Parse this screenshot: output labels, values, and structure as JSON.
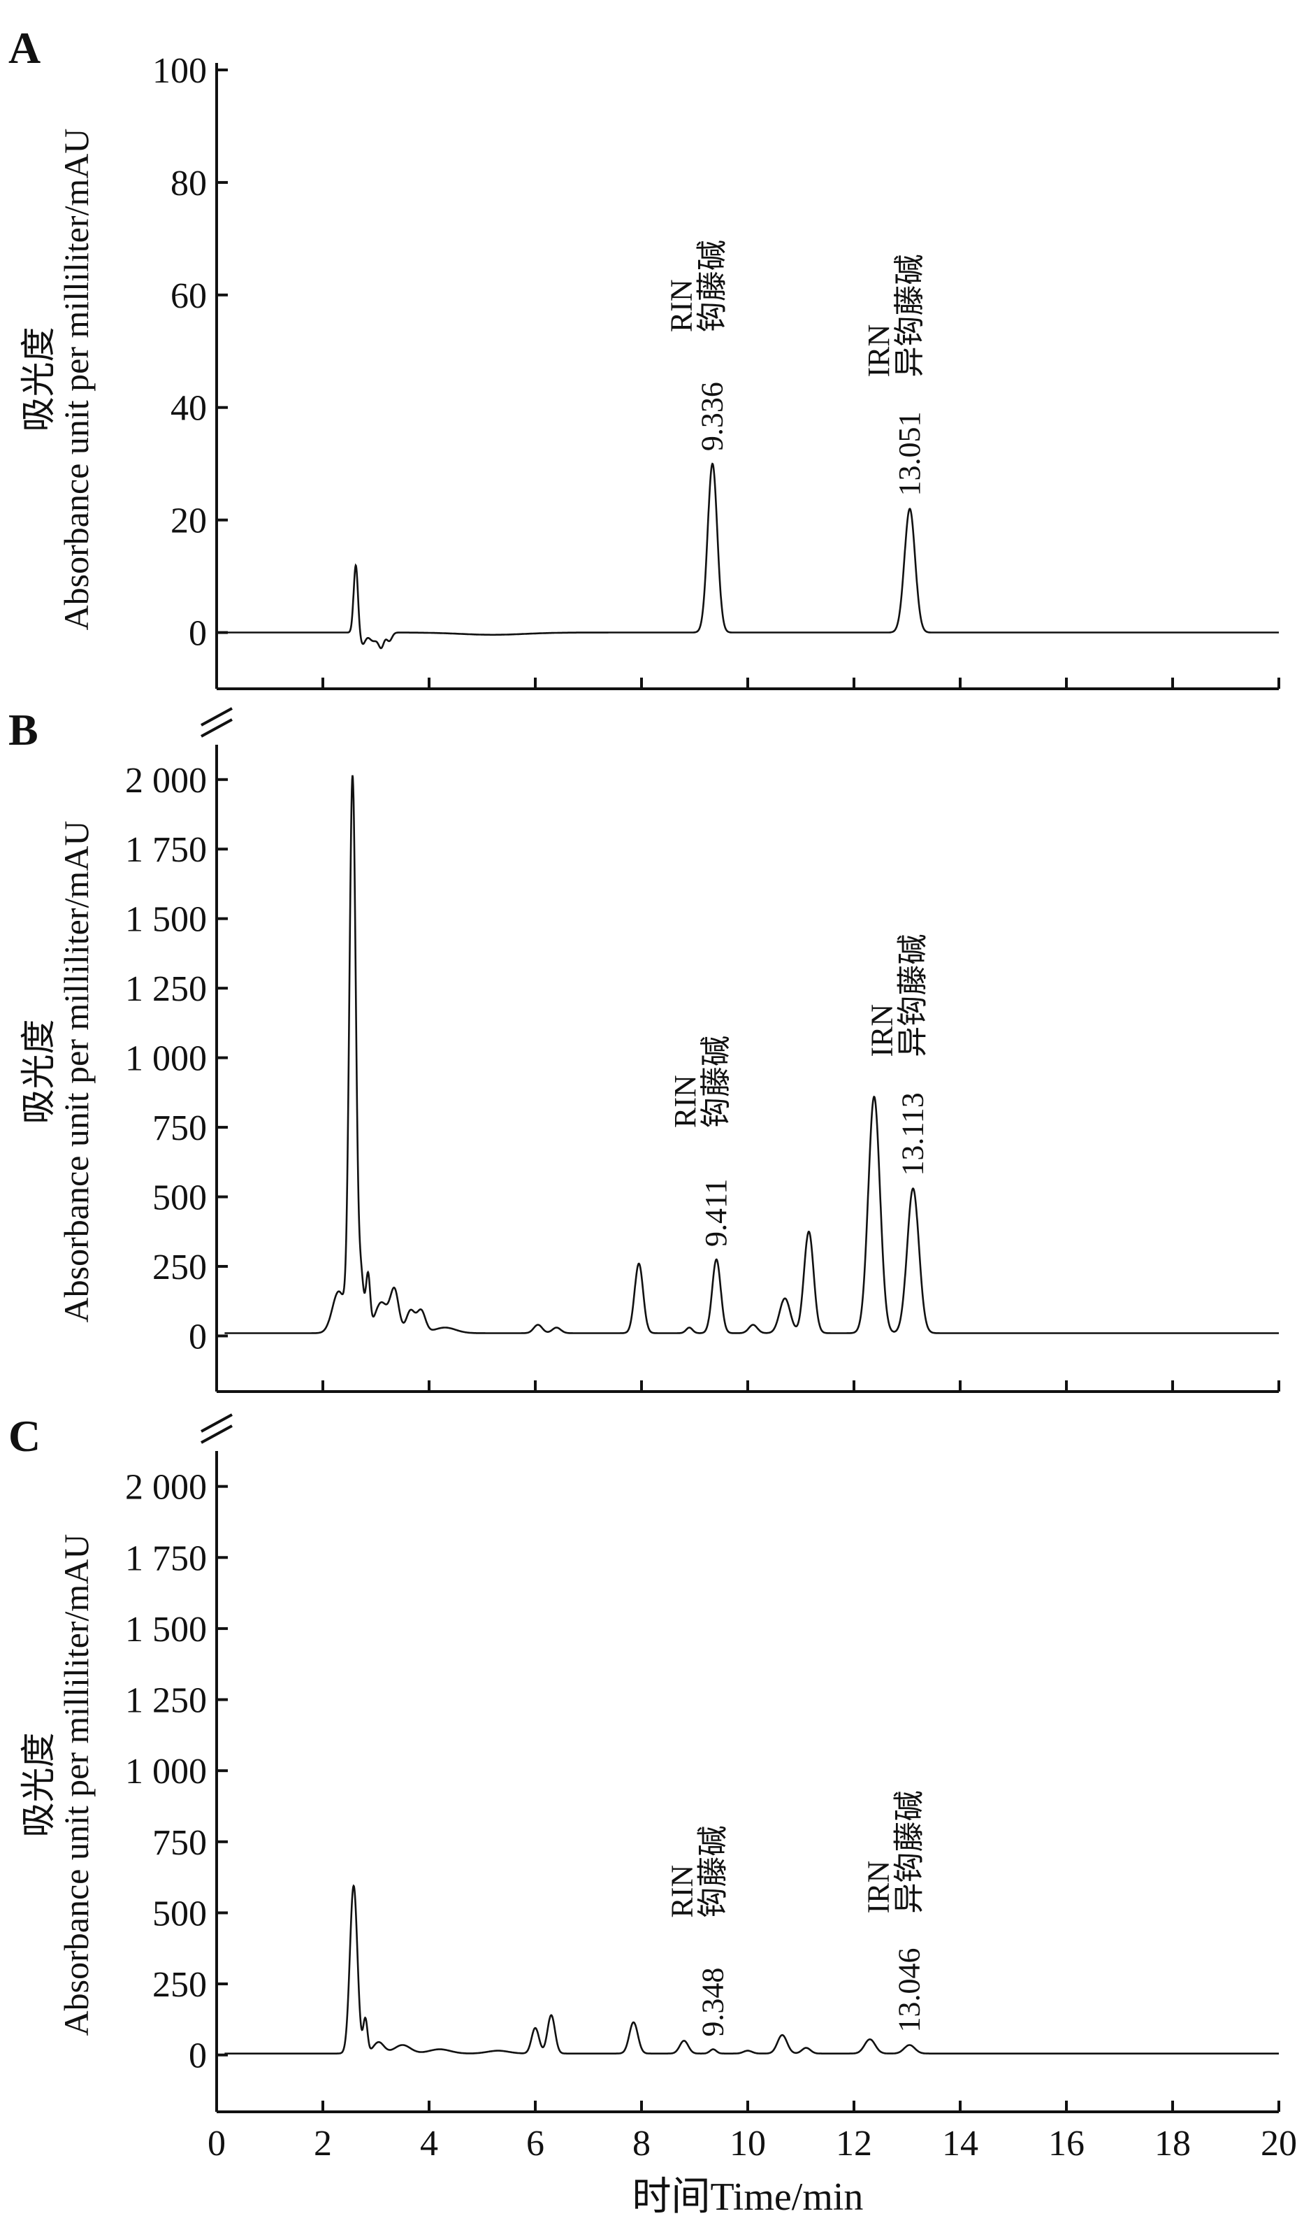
{
  "chart_data": [
    {
      "type": "line",
      "panel_label": "A",
      "ylabel_lines": [
        "吸光度",
        "Absorbance unit per milliliter/mAU"
      ],
      "ylim": [
        -10,
        100
      ],
      "yticks": [
        0,
        20,
        40,
        60,
        80,
        100
      ],
      "ytick_labels": [
        "0",
        "20",
        "40",
        "60",
        "80",
        "100"
      ],
      "xlim": [
        0,
        20
      ],
      "axis_break": false,
      "grid": false,
      "baseline": 0,
      "peaks": [
        {
          "x": 2.62,
          "y": 12,
          "w": 0.04
        },
        {
          "x": 2.75,
          "y": -2,
          "w": 0.05
        },
        {
          "x": 2.95,
          "y": -1.5,
          "w": 0.08
        },
        {
          "x": 3.1,
          "y": -2.5,
          "w": 0.05
        },
        {
          "x": 3.25,
          "y": -1.5,
          "w": 0.05
        },
        {
          "x": 5.2,
          "y": -0.4,
          "w": 0.6
        },
        {
          "x": 9.336,
          "y": 30,
          "w": 0.09
        },
        {
          "x": 13.051,
          "y": 22,
          "w": 0.1
        }
      ],
      "annotations": [
        {
          "x": 9.336,
          "line1": "RIN",
          "line1b": "钩藤碱",
          "line2": "9.336"
        },
        {
          "x": 13.051,
          "line1": "IRN",
          "line1b": "异钩藤碱",
          "line2": "13.051"
        }
      ]
    },
    {
      "type": "line",
      "panel_label": "B",
      "ylabel_lines": [
        "吸光度",
        "Absorbance unit per milliliter/mAU"
      ],
      "ylim": [
        -200,
        2100
      ],
      "yticks": [
        0,
        250,
        500,
        750,
        1000,
        1250,
        1500,
        1750,
        2000
      ],
      "ytick_labels": [
        "0",
        "250",
        "500",
        "750",
        "1 000",
        "1 250",
        "1 500",
        "1 750",
        "2 000"
      ],
      "xlim": [
        0,
        20
      ],
      "axis_break": true,
      "grid": false,
      "baseline": 10,
      "peaks": [
        {
          "x": 2.3,
          "y": 150,
          "w": 0.12
        },
        {
          "x": 2.56,
          "y": 1990,
          "w": 0.06
        },
        {
          "x": 2.72,
          "y": 200,
          "w": 0.05
        },
        {
          "x": 2.85,
          "y": 200,
          "w": 0.04
        },
        {
          "x": 3.1,
          "y": 110,
          "w": 0.12
        },
        {
          "x": 3.35,
          "y": 150,
          "w": 0.08
        },
        {
          "x": 3.65,
          "y": 80,
          "w": 0.08
        },
        {
          "x": 3.85,
          "y": 80,
          "w": 0.08
        },
        {
          "x": 4.3,
          "y": 20,
          "w": 0.2
        },
        {
          "x": 6.05,
          "y": 30,
          "w": 0.08
        },
        {
          "x": 6.4,
          "y": 20,
          "w": 0.08
        },
        {
          "x": 7.95,
          "y": 250,
          "w": 0.08
        },
        {
          "x": 8.9,
          "y": 20,
          "w": 0.06
        },
        {
          "x": 9.411,
          "y": 265,
          "w": 0.08
        },
        {
          "x": 10.1,
          "y": 30,
          "w": 0.08
        },
        {
          "x": 10.7,
          "y": 125,
          "w": 0.1
        },
        {
          "x": 11.15,
          "y": 365,
          "w": 0.09
        },
        {
          "x": 12.38,
          "y": 850,
          "w": 0.11
        },
        {
          "x": 13.113,
          "y": 520,
          "w": 0.11
        }
      ],
      "annotations": [
        {
          "x": 9.411,
          "line1": "RIN",
          "line1b": "钩藤碱",
          "line2": "9.411"
        },
        {
          "x": 13.113,
          "line1": "IRN",
          "line1b": "异钩藤碱",
          "line2": "13.113"
        }
      ]
    },
    {
      "type": "line",
      "panel_label": "C",
      "ylabel_lines": [
        "吸光度",
        "Absorbance unit per milliliter/mAU"
      ],
      "ylim": [
        -200,
        2100
      ],
      "yticks": [
        0,
        250,
        500,
        750,
        1000,
        1250,
        1500,
        1750,
        2000
      ],
      "ytick_labels": [
        "0",
        "250",
        "500",
        "750",
        "1 000",
        "1 250",
        "1 500",
        "1 750",
        "2 000"
      ],
      "xlim": [
        0,
        20
      ],
      "xticks": [
        0,
        2,
        4,
        6,
        8,
        10,
        12,
        14,
        16,
        18,
        20
      ],
      "xtick_labels": [
        "0",
        "2",
        "4",
        "6",
        "8",
        "10",
        "12",
        "14",
        "16",
        "18",
        "20"
      ],
      "xlabel": "时间Time/min",
      "axis_break": true,
      "grid": false,
      "baseline": 5,
      "peaks": [
        {
          "x": 2.58,
          "y": 590,
          "w": 0.07
        },
        {
          "x": 2.8,
          "y": 120,
          "w": 0.04
        },
        {
          "x": 3.05,
          "y": 40,
          "w": 0.1
        },
        {
          "x": 3.5,
          "y": 30,
          "w": 0.15
        },
        {
          "x": 4.2,
          "y": 15,
          "w": 0.2
        },
        {
          "x": 5.3,
          "y": 10,
          "w": 0.2
        },
        {
          "x": 6.0,
          "y": 90,
          "w": 0.07
        },
        {
          "x": 6.3,
          "y": 135,
          "w": 0.07
        },
        {
          "x": 7.85,
          "y": 110,
          "w": 0.08
        },
        {
          "x": 8.8,
          "y": 45,
          "w": 0.08
        },
        {
          "x": 9.348,
          "y": 15,
          "w": 0.06
        },
        {
          "x": 10.0,
          "y": 10,
          "w": 0.08
        },
        {
          "x": 10.65,
          "y": 65,
          "w": 0.09
        },
        {
          "x": 11.1,
          "y": 20,
          "w": 0.08
        },
        {
          "x": 12.3,
          "y": 50,
          "w": 0.1
        },
        {
          "x": 13.046,
          "y": 30,
          "w": 0.1
        }
      ],
      "annotations": [
        {
          "x": 9.348,
          "line1": "RIN",
          "line1b": "钩藤碱",
          "line2": "9.348"
        },
        {
          "x": 13.046,
          "line1": "IRN",
          "line1b": "异钩藤碱",
          "line2": "13.046"
        }
      ]
    }
  ]
}
